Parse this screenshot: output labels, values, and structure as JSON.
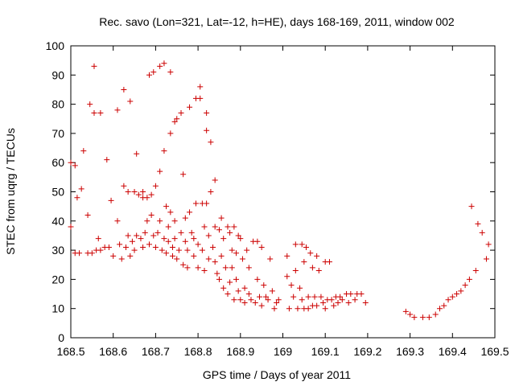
{
  "chart_data": {
    "type": "scatter",
    "title": "Rec. savo (Lon=321, Lat=-12, h=HE), days 168-169, 2011, window 002",
    "xlabel": "GPS time / Days of year 2011",
    "ylabel": "STEC from uqrg / TECUs",
    "xlim": [
      168.5,
      169.5
    ],
    "ylim": [
      0,
      100
    ],
    "xticks": [
      "168.5",
      "168.6",
      "168.7",
      "168.8",
      "168.9",
      "169",
      "169.1",
      "169.2",
      "169.3",
      "169.4",
      "169.5"
    ],
    "yticks": [
      "0",
      "10",
      "20",
      "30",
      "40",
      "50",
      "60",
      "70",
      "80",
      "90",
      "100"
    ],
    "grid": false,
    "color": "#cc0000",
    "marker": "plus",
    "points": [
      [
        168.5,
        38
      ],
      [
        168.5,
        60
      ],
      [
        168.51,
        59
      ],
      [
        168.515,
        48
      ],
      [
        168.51,
        29
      ],
      [
        168.52,
        29
      ],
      [
        168.525,
        51
      ],
      [
        168.53,
        64
      ],
      [
        168.54,
        29
      ],
      [
        168.54,
        42
      ],
      [
        168.545,
        80
      ],
      [
        168.55,
        29
      ],
      [
        168.555,
        93
      ],
      [
        168.555,
        77
      ],
      [
        168.56,
        30
      ],
      [
        168.565,
        34
      ],
      [
        168.57,
        77
      ],
      [
        168.57,
        30
      ],
      [
        168.58,
        31
      ],
      [
        168.585,
        61
      ],
      [
        168.59,
        31
      ],
      [
        168.595,
        47
      ],
      [
        168.6,
        28
      ],
      [
        168.61,
        78
      ],
      [
        168.61,
        40
      ],
      [
        168.615,
        32
      ],
      [
        168.62,
        27
      ],
      [
        168.625,
        52
      ],
      [
        168.625,
        85
      ],
      [
        168.63,
        31
      ],
      [
        168.635,
        35
      ],
      [
        168.635,
        50
      ],
      [
        168.64,
        81
      ],
      [
        168.64,
        28
      ],
      [
        168.645,
        33
      ],
      [
        168.65,
        30
      ],
      [
        168.65,
        50
      ],
      [
        168.655,
        63
      ],
      [
        168.655,
        35
      ],
      [
        168.66,
        49
      ],
      [
        168.665,
        34
      ],
      [
        168.67,
        31
      ],
      [
        168.67,
        50
      ],
      [
        168.67,
        48
      ],
      [
        168.675,
        36
      ],
      [
        168.68,
        40
      ],
      [
        168.68,
        48
      ],
      [
        168.685,
        90
      ],
      [
        168.685,
        32
      ],
      [
        168.69,
        49
      ],
      [
        168.69,
        42
      ],
      [
        168.695,
        35
      ],
      [
        168.695,
        91
      ],
      [
        168.7,
        52
      ],
      [
        168.7,
        31
      ],
      [
        168.705,
        36
      ],
      [
        168.71,
        57
      ],
      [
        168.71,
        93
      ],
      [
        168.71,
        40
      ],
      [
        168.715,
        30
      ],
      [
        168.72,
        34
      ],
      [
        168.72,
        94
      ],
      [
        168.72,
        64
      ],
      [
        168.725,
        45
      ],
      [
        168.725,
        29
      ],
      [
        168.73,
        33
      ],
      [
        168.73,
        38
      ],
      [
        168.735,
        91
      ],
      [
        168.735,
        70
      ],
      [
        168.735,
        43
      ],
      [
        168.74,
        28
      ],
      [
        168.74,
        31
      ],
      [
        168.745,
        74
      ],
      [
        168.745,
        40
      ],
      [
        168.745,
        34
      ],
      [
        168.75,
        75
      ],
      [
        168.75,
        27
      ],
      [
        168.755,
        30
      ],
      [
        168.76,
        77
      ],
      [
        168.76,
        36
      ],
      [
        168.765,
        56
      ],
      [
        168.765,
        25
      ],
      [
        168.77,
        41
      ],
      [
        168.77,
        33
      ],
      [
        168.775,
        30
      ],
      [
        168.775,
        24
      ],
      [
        168.78,
        79
      ],
      [
        168.78,
        43
      ],
      [
        168.785,
        36
      ],
      [
        168.79,
        34
      ],
      [
        168.79,
        28
      ],
      [
        168.795,
        82
      ],
      [
        168.795,
        46
      ],
      [
        168.8,
        32
      ],
      [
        168.8,
        24
      ],
      [
        168.805,
        86
      ],
      [
        168.805,
        82
      ],
      [
        168.81,
        46
      ],
      [
        168.81,
        30
      ],
      [
        168.815,
        38
      ],
      [
        168.815,
        23
      ],
      [
        168.82,
        77
      ],
      [
        168.82,
        71
      ],
      [
        168.82,
        46
      ],
      [
        168.825,
        35
      ],
      [
        168.825,
        27
      ],
      [
        168.83,
        67
      ],
      [
        168.83,
        50
      ],
      [
        168.835,
        31
      ],
      [
        168.84,
        54
      ],
      [
        168.84,
        38
      ],
      [
        168.84,
        26
      ],
      [
        168.845,
        22
      ],
      [
        168.85,
        37
      ],
      [
        168.85,
        20
      ],
      [
        168.855,
        41
      ],
      [
        168.855,
        28
      ],
      [
        168.86,
        34
      ],
      [
        168.86,
        17
      ],
      [
        168.865,
        24
      ],
      [
        168.87,
        38
      ],
      [
        168.87,
        15
      ],
      [
        168.875,
        36
      ],
      [
        168.875,
        19
      ],
      [
        168.88,
        30
      ],
      [
        168.88,
        24
      ],
      [
        168.885,
        38
      ],
      [
        168.885,
        13
      ],
      [
        168.89,
        29
      ],
      [
        168.89,
        20
      ],
      [
        168.895,
        35
      ],
      [
        168.895,
        16
      ],
      [
        168.9,
        34
      ],
      [
        168.9,
        13
      ],
      [
        168.905,
        27
      ],
      [
        168.91,
        17
      ],
      [
        168.91,
        12
      ],
      [
        168.915,
        30
      ],
      [
        168.92,
        15
      ],
      [
        168.92,
        24
      ],
      [
        168.925,
        13
      ],
      [
        168.93,
        33
      ],
      [
        168.935,
        12
      ],
      [
        168.94,
        20
      ],
      [
        168.94,
        33
      ],
      [
        168.945,
        14
      ],
      [
        168.95,
        31
      ],
      [
        168.95,
        11
      ],
      [
        168.955,
        18
      ],
      [
        168.96,
        14
      ],
      [
        168.965,
        13
      ],
      [
        168.97,
        27
      ],
      [
        168.975,
        16
      ],
      [
        168.98,
        10
      ],
      [
        168.985,
        12
      ],
      [
        168.99,
        13
      ],
      [
        169.01,
        28
      ],
      [
        169.01,
        21
      ],
      [
        169.015,
        10
      ],
      [
        169.02,
        18
      ],
      [
        169.025,
        14
      ],
      [
        169.03,
        32
      ],
      [
        169.03,
        23
      ],
      [
        169.035,
        10
      ],
      [
        169.04,
        17
      ],
      [
        169.045,
        32
      ],
      [
        169.045,
        13
      ],
      [
        169.05,
        26
      ],
      [
        169.05,
        10
      ],
      [
        169.055,
        31
      ],
      [
        169.06,
        14
      ],
      [
        169.06,
        10
      ],
      [
        169.065,
        29
      ],
      [
        169.07,
        24
      ],
      [
        169.07,
        11
      ],
      [
        169.075,
        14
      ],
      [
        169.08,
        28
      ],
      [
        169.08,
        11
      ],
      [
        169.085,
        23
      ],
      [
        169.09,
        14
      ],
      [
        169.095,
        12
      ],
      [
        169.1,
        26
      ],
      [
        169.1,
        10
      ],
      [
        169.105,
        13
      ],
      [
        169.11,
        26
      ],
      [
        169.115,
        13
      ],
      [
        169.12,
        11
      ],
      [
        169.125,
        14
      ],
      [
        169.13,
        12
      ],
      [
        169.135,
        14
      ],
      [
        169.14,
        13
      ],
      [
        169.15,
        15
      ],
      [
        169.155,
        12
      ],
      [
        169.16,
        15
      ],
      [
        169.17,
        13
      ],
      [
        169.175,
        15
      ],
      [
        169.185,
        15
      ],
      [
        169.195,
        12
      ],
      [
        169.29,
        9
      ],
      [
        169.3,
        8
      ],
      [
        169.31,
        7
      ],
      [
        169.33,
        7
      ],
      [
        169.345,
        7
      ],
      [
        169.36,
        8
      ],
      [
        169.37,
        10
      ],
      [
        169.38,
        11
      ],
      [
        169.39,
        13
      ],
      [
        169.4,
        14
      ],
      [
        169.41,
        15
      ],
      [
        169.42,
        16
      ],
      [
        169.43,
        18
      ],
      [
        169.44,
        20
      ],
      [
        169.445,
        45
      ],
      [
        169.455,
        23
      ],
      [
        169.46,
        39
      ],
      [
        169.47,
        36
      ],
      [
        169.48,
        27
      ],
      [
        169.485,
        32
      ]
    ]
  }
}
